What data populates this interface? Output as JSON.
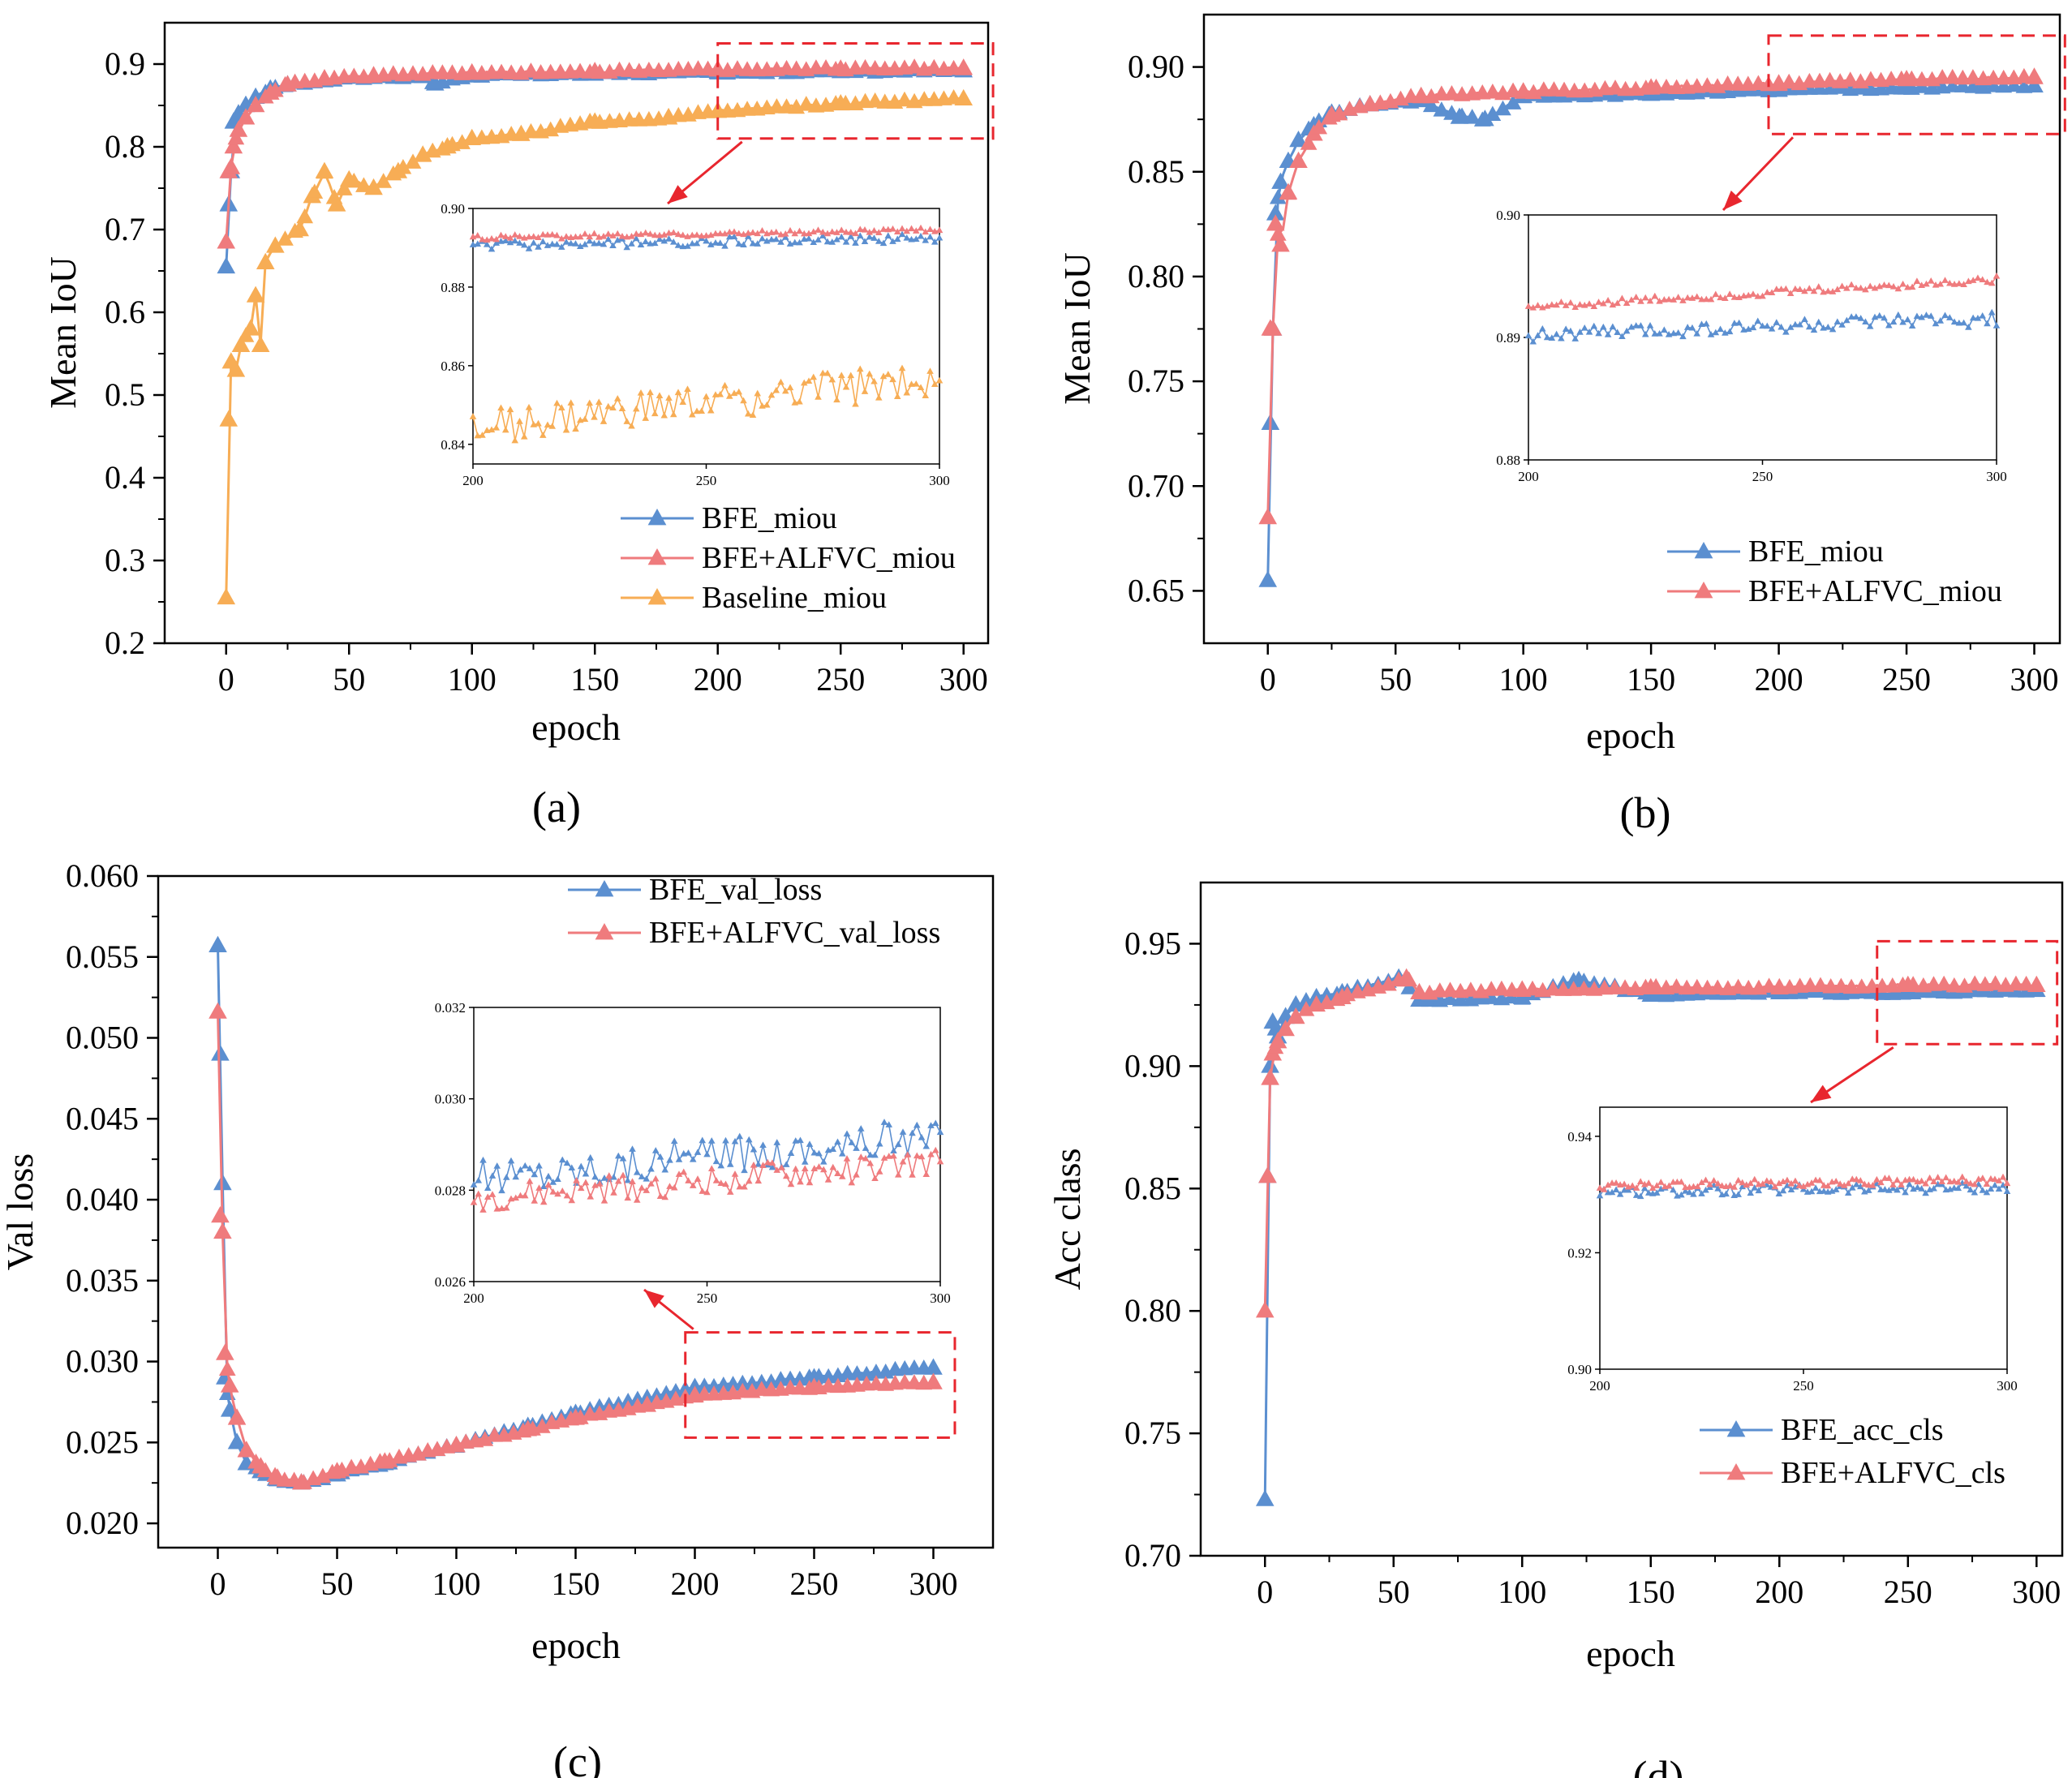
{
  "colors": {
    "bfe": "#5b8fd0",
    "alfvc": "#ef7b7d",
    "baseline": "#f7ad55",
    "zoom_box": "#e8262e"
  },
  "chart_data": [
    {
      "id": "a",
      "panel_label": "(a)",
      "type": "line",
      "xlabel": "epoch",
      "ylabel": "Mean IoU",
      "xlim": [
        -25,
        310
      ],
      "ylim": [
        0.2,
        0.95
      ],
      "xticks": [
        0,
        50,
        100,
        150,
        200,
        250,
        300
      ],
      "yticks": [
        0.2,
        0.3,
        0.4,
        0.5,
        0.6,
        0.7,
        0.8,
        0.9
      ],
      "ytick_labels": [
        "0.2",
        "0.3",
        "0.4",
        "0.5",
        "0.6",
        "0.7",
        "0.8",
        "0.9"
      ],
      "legend": {
        "position": "bottom-right",
        "entries": [
          "BFE_miou",
          "BFE+ALFVC_miou",
          "Baseline_miou"
        ]
      },
      "series": [
        {
          "name": "BFE_miou",
          "color_key": "bfe",
          "points": [
            [
              0,
              0.655
            ],
            [
              1,
              0.73
            ],
            [
              2,
              0.77
            ],
            [
              3,
              0.83
            ],
            [
              5,
              0.84
            ],
            [
              8,
              0.85
            ],
            [
              12,
              0.86
            ],
            [
              18,
              0.87
            ],
            [
              25,
              0.875
            ],
            [
              40,
              0.88
            ],
            [
              60,
              0.884
            ],
            [
              80,
              0.885
            ],
            [
              85,
              0.876
            ],
            [
              100,
              0.886
            ],
            [
              150,
              0.888
            ],
            [
              200,
              0.89
            ],
            [
              250,
              0.891
            ],
            [
              300,
              0.892
            ]
          ]
        },
        {
          "name": "BFE+ALFVC_miou",
          "color_key": "alfvc",
          "points": [
            [
              0,
              0.685
            ],
            [
              1,
              0.77
            ],
            [
              2,
              0.775
            ],
            [
              3,
              0.8
            ],
            [
              5,
              0.82
            ],
            [
              8,
              0.835
            ],
            [
              12,
              0.85
            ],
            [
              18,
              0.865
            ],
            [
              25,
              0.875
            ],
            [
              40,
              0.882
            ],
            [
              60,
              0.886
            ],
            [
              100,
              0.889
            ],
            [
              150,
              0.891
            ],
            [
              200,
              0.893
            ],
            [
              250,
              0.894
            ],
            [
              300,
              0.895
            ]
          ]
        },
        {
          "name": "Baseline_miou",
          "color_key": "baseline",
          "points": [
            [
              0,
              0.255
            ],
            [
              1,
              0.47
            ],
            [
              2,
              0.54
            ],
            [
              4,
              0.53
            ],
            [
              6,
              0.56
            ],
            [
              10,
              0.58
            ],
            [
              12,
              0.62
            ],
            [
              14,
              0.56
            ],
            [
              16,
              0.66
            ],
            [
              20,
              0.68
            ],
            [
              30,
              0.7
            ],
            [
              35,
              0.74
            ],
            [
              40,
              0.77
            ],
            [
              45,
              0.73
            ],
            [
              50,
              0.76
            ],
            [
              60,
              0.75
            ],
            [
              70,
              0.77
            ],
            [
              80,
              0.79
            ],
            [
              90,
              0.8
            ],
            [
              100,
              0.81
            ],
            [
              120,
              0.815
            ],
            [
              150,
              0.83
            ],
            [
              180,
              0.835
            ],
            [
              200,
              0.843
            ],
            [
              250,
              0.852
            ],
            [
              300,
              0.858
            ]
          ]
        }
      ],
      "zoom_box": {
        "x": [
          200,
          312
        ],
        "y": [
          0.81,
          0.925
        ]
      },
      "inset": {
        "xlim": [
          200,
          300
        ],
        "ylim": [
          0.835,
          0.9
        ],
        "xticks": [
          200,
          250,
          300
        ],
        "yticks": [
          0.84,
          0.86,
          0.88,
          0.9
        ],
        "ytick_labels": [
          "0.84",
          "0.86",
          "0.88",
          "0.90"
        ],
        "series": [
          {
            "name": "BFE_miou",
            "color_key": "bfe",
            "base": [
              0.8905,
              0.8925
            ],
            "noise": 0.0012
          },
          {
            "name": "BFE+ALFVC_miou",
            "color_key": "alfvc",
            "base": [
              0.8925,
              0.8945
            ],
            "noise": 0.0006
          },
          {
            "name": "Baseline_miou",
            "color_key": "baseline",
            "base": [
              0.844,
              0.857
            ],
            "noise": 0.0045
          }
        ]
      }
    },
    {
      "id": "b",
      "panel_label": "(b)",
      "type": "line",
      "xlabel": "epoch",
      "ylabel": "Mean IoU",
      "xlim": [
        -25,
        310
      ],
      "ylim": [
        0.625,
        0.925
      ],
      "xticks": [
        0,
        50,
        100,
        150,
        200,
        250,
        300
      ],
      "yticks": [
        0.65,
        0.7,
        0.75,
        0.8,
        0.85,
        0.9
      ],
      "ytick_labels": [
        "0.65",
        "0.70",
        "0.75",
        "0.80",
        "0.85",
        "0.90"
      ],
      "legend": {
        "position": "bottom-right",
        "entries": [
          "BFE_miou",
          "BFE+ALFVC_miou"
        ]
      },
      "series": [
        {
          "name": "BFE_miou",
          "color_key": "bfe",
          "points": [
            [
              0,
              0.655
            ],
            [
              1,
              0.73
            ],
            [
              2,
              0.775
            ],
            [
              3,
              0.83
            ],
            [
              5,
              0.845
            ],
            [
              8,
              0.855
            ],
            [
              12,
              0.865
            ],
            [
              18,
              0.872
            ],
            [
              25,
              0.878
            ],
            [
              40,
              0.882
            ],
            [
              60,
              0.884
            ],
            [
              75,
              0.876
            ],
            [
              85,
              0.875
            ],
            [
              100,
              0.886
            ],
            [
              150,
              0.887
            ],
            [
              200,
              0.889
            ],
            [
              250,
              0.89
            ],
            [
              300,
              0.891
            ]
          ]
        },
        {
          "name": "BFE+ALFVC_miou",
          "color_key": "alfvc",
          "points": [
            [
              0,
              0.685
            ],
            [
              1,
              0.775
            ],
            [
              2,
              0.775
            ],
            [
              3,
              0.825
            ],
            [
              5,
              0.815
            ],
            [
              8,
              0.84
            ],
            [
              12,
              0.855
            ],
            [
              18,
              0.868
            ],
            [
              25,
              0.877
            ],
            [
              40,
              0.882
            ],
            [
              60,
              0.886
            ],
            [
              100,
              0.888
            ],
            [
              150,
              0.89
            ],
            [
              200,
              0.892
            ],
            [
              250,
              0.894
            ],
            [
              300,
              0.895
            ]
          ]
        }
      ],
      "zoom_box": {
        "x": [
          196,
          312
        ],
        "y": [
          0.868,
          0.915
        ]
      },
      "inset": {
        "xlim": [
          200,
          300
        ],
        "ylim": [
          0.88,
          0.9
        ],
        "xticks": [
          200,
          250,
          300
        ],
        "yticks": [
          0.88,
          0.89,
          0.9
        ],
        "ytick_labels": [
          "0.88",
          "0.89",
          "0.90"
        ],
        "series": [
          {
            "name": "BFE_miou",
            "color_key": "bfe",
            "base": [
              0.8902,
              0.8915
            ],
            "noise": 0.0006
          },
          {
            "name": "BFE+ALFVC_miou",
            "color_key": "alfvc",
            "base": [
              0.8925,
              0.8947
            ],
            "noise": 0.0003
          }
        ]
      }
    },
    {
      "id": "c",
      "panel_label": "(c)",
      "type": "line",
      "xlabel": "epoch",
      "ylabel": "Val loss",
      "xlim": [
        -25,
        325
      ],
      "ylim": [
        0.0185,
        0.06
      ],
      "xticks": [
        0,
        50,
        100,
        150,
        200,
        250,
        300
      ],
      "yticks": [
        0.02,
        0.025,
        0.03,
        0.035,
        0.04,
        0.045,
        0.05,
        0.055,
        0.06
      ],
      "ytick_labels": [
        "0.020",
        "0.025",
        "0.030",
        "0.035",
        "0.040",
        "0.045",
        "0.050",
        "0.055",
        "0.060"
      ],
      "legend": {
        "position": "top-right",
        "entries": [
          "BFE_val_loss",
          "BFE+ALFVC_val_loss"
        ]
      },
      "series": [
        {
          "name": "BFE_val_loss",
          "color_key": "bfe",
          "points": [
            [
              0,
              0.0557
            ],
            [
              1,
              0.049
            ],
            [
              2,
              0.041
            ],
            [
              3,
              0.029
            ],
            [
              5,
              0.027
            ],
            [
              8,
              0.025
            ],
            [
              12,
              0.0237
            ],
            [
              18,
              0.0232
            ],
            [
              25,
              0.0227
            ],
            [
              35,
              0.0225
            ],
            [
              50,
              0.023
            ],
            [
              70,
              0.0237
            ],
            [
              100,
              0.0248
            ],
            [
              130,
              0.026
            ],
            [
              150,
              0.0268
            ],
            [
              180,
              0.0277
            ],
            [
              200,
              0.0284
            ],
            [
              250,
              0.029
            ],
            [
              300,
              0.0296
            ]
          ]
        },
        {
          "name": "BFE+ALFVC_val_loss",
          "color_key": "alfvc",
          "points": [
            [
              0,
              0.0516
            ],
            [
              1,
              0.039
            ],
            [
              2,
              0.038
            ],
            [
              3,
              0.0305
            ],
            [
              5,
              0.0285
            ],
            [
              8,
              0.0265
            ],
            [
              12,
              0.0245
            ],
            [
              18,
              0.0235
            ],
            [
              25,
              0.0228
            ],
            [
              35,
              0.0225
            ],
            [
              50,
              0.0232
            ],
            [
              70,
              0.0238
            ],
            [
              100,
              0.0248
            ],
            [
              130,
              0.0258
            ],
            [
              150,
              0.0265
            ],
            [
              180,
              0.0273
            ],
            [
              200,
              0.0279
            ],
            [
              250,
              0.0284
            ],
            [
              300,
              0.0287
            ]
          ]
        }
      ],
      "zoom_box": {
        "x": [
          196,
          309
        ],
        "y": [
          0.0253,
          0.0318
        ]
      },
      "inset": {
        "xlim": [
          200,
          300
        ],
        "ylim": [
          0.026,
          0.032
        ],
        "xticks": [
          200,
          250,
          300
        ],
        "yticks": [
          0.026,
          0.028,
          0.03,
          0.032
        ],
        "ytick_labels": [
          "0.026",
          "0.028",
          "0.030",
          "0.032"
        ],
        "series": [
          {
            "name": "BFE_val_loss",
            "color_key": "bfe",
            "base": [
              0.0283,
              0.0292
            ],
            "noise": 0.0004
          },
          {
            "name": "BFE+ALFVC_val_loss",
            "color_key": "alfvc",
            "base": [
              0.0278,
              0.0286
            ],
            "noise": 0.0003
          }
        ]
      }
    },
    {
      "id": "d",
      "panel_label": "(d)",
      "type": "line",
      "xlabel": "epoch",
      "ylabel": "Acc class",
      "xlim": [
        -25,
        310
      ],
      "ylim": [
        0.7,
        0.975
      ],
      "xticks": [
        0,
        50,
        100,
        150,
        200,
        250,
        300
      ],
      "yticks": [
        0.7,
        0.75,
        0.8,
        0.85,
        0.9,
        0.95
      ],
      "ytick_labels": [
        "0.70",
        "0.75",
        "0.80",
        "0.85",
        "0.90",
        "0.95"
      ],
      "legend": {
        "position": "bottom-right",
        "entries": [
          "BFE_acc_cls",
          "BFE+ALFVC_cls"
        ]
      },
      "series": [
        {
          "name": "BFE_acc_cls",
          "color_key": "bfe",
          "points": [
            [
              0,
              0.723
            ],
            [
              1,
              0.855
            ],
            [
              2,
              0.9
            ],
            [
              3,
              0.918
            ],
            [
              5,
              0.912
            ],
            [
              8,
              0.92
            ],
            [
              12,
              0.925
            ],
            [
              20,
              0.928
            ],
            [
              30,
              0.93
            ],
            [
              52,
              0.936
            ],
            [
              60,
              0.927
            ],
            [
              100,
              0.928
            ],
            [
              122,
              0.935
            ],
            [
              150,
              0.929
            ],
            [
              200,
              0.93
            ],
            [
              250,
              0.93
            ],
            [
              300,
              0.931
            ]
          ]
        },
        {
          "name": "BFE+ALFVC_cls",
          "color_key": "alfvc",
          "points": [
            [
              0,
              0.8
            ],
            [
              1,
              0.855
            ],
            [
              2,
              0.895
            ],
            [
              3,
              0.905
            ],
            [
              5,
              0.91
            ],
            [
              8,
              0.915
            ],
            [
              12,
              0.92
            ],
            [
              20,
              0.925
            ],
            [
              30,
              0.928
            ],
            [
              55,
              0.936
            ],
            [
              60,
              0.93
            ],
            [
              100,
              0.931
            ],
            [
              150,
              0.932
            ],
            [
              200,
              0.932
            ],
            [
              250,
              0.933
            ],
            [
              300,
              0.933
            ]
          ]
        }
      ],
      "zoom_box": {
        "x": [
          238,
          308
        ],
        "y": [
          0.909,
          0.951
        ]
      },
      "inset": {
        "xlim": [
          200,
          300
        ],
        "ylim": [
          0.9,
          0.945
        ],
        "xticks": [
          200,
          250,
          300
        ],
        "yticks": [
          0.9,
          0.92,
          0.94
        ],
        "ytick_labels": [
          "0.90",
          "0.92",
          "0.94"
        ],
        "series": [
          {
            "name": "BFE_acc_cls",
            "color_key": "bfe",
            "base": [
              0.9305,
              0.9312
            ],
            "noise": 0.0009
          },
          {
            "name": "BFE+ALFVC_cls",
            "color_key": "alfvc",
            "base": [
              0.9315,
              0.9325
            ],
            "noise": 0.0007
          }
        ]
      }
    }
  ]
}
